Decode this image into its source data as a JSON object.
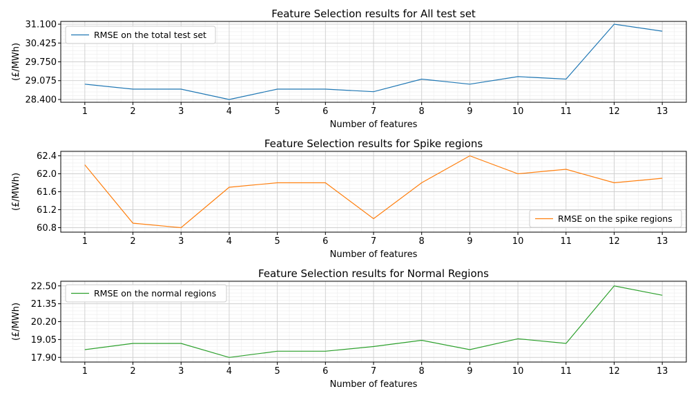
{
  "chart_data": [
    {
      "type": "line",
      "title": "Feature Selection results for All test set",
      "xlabel": "Number of features",
      "ylabel": "(£/MWh)",
      "x": [
        1,
        2,
        3,
        4,
        5,
        6,
        7,
        8,
        9,
        10,
        11,
        12,
        13
      ],
      "xlim": [
        0.5,
        13.5
      ],
      "ylim": [
        28.3,
        31.2
      ],
      "yticks": [
        "28.400",
        "29.075",
        "29.750",
        "30.425",
        "31.100"
      ],
      "grid": true,
      "legend_position": "upper-left",
      "series": [
        {
          "name": "RMSE on the total test set",
          "color": "#1f77b4",
          "values": [
            28.95,
            28.77,
            28.77,
            28.4,
            28.77,
            28.77,
            28.68,
            29.13,
            28.95,
            29.22,
            29.13,
            31.1,
            30.85
          ]
        }
      ]
    },
    {
      "type": "line",
      "title": "Feature Selection results for Spike regions",
      "xlabel": "Number of features",
      "ylabel": "(£/MWh)",
      "x": [
        1,
        2,
        3,
        4,
        5,
        6,
        7,
        8,
        9,
        10,
        11,
        12,
        13
      ],
      "xlim": [
        0.5,
        13.5
      ],
      "ylim": [
        60.7,
        62.5
      ],
      "yticks": [
        "60.8",
        "61.2",
        "61.6",
        "62.0",
        "62.4"
      ],
      "grid": true,
      "legend_position": "lower-right",
      "series": [
        {
          "name": "RMSE on the spike regions",
          "color": "#ff7f0e",
          "values": [
            62.2,
            60.9,
            60.8,
            61.7,
            61.8,
            61.8,
            61.0,
            61.8,
            62.4,
            62.0,
            62.1,
            61.8,
            61.9
          ]
        }
      ]
    },
    {
      "type": "line",
      "title": "Feature Selection results for Normal Regions",
      "xlabel": "Number of features",
      "ylabel": "(£/MWh)",
      "x": [
        1,
        2,
        3,
        4,
        5,
        6,
        7,
        8,
        9,
        10,
        11,
        12,
        13
      ],
      "xlim": [
        0.5,
        13.5
      ],
      "ylim": [
        17.6,
        22.8
      ],
      "yticks": [
        "17.90",
        "19.05",
        "20.20",
        "21.35",
        "22.50"
      ],
      "grid": true,
      "legend_position": "upper-left",
      "series": [
        {
          "name": "RMSE on the normal regions",
          "color": "#2ca02c",
          "values": [
            18.4,
            18.8,
            18.8,
            17.9,
            18.3,
            18.3,
            18.6,
            19.0,
            18.4,
            19.1,
            18.8,
            22.5,
            21.9
          ]
        }
      ]
    }
  ]
}
